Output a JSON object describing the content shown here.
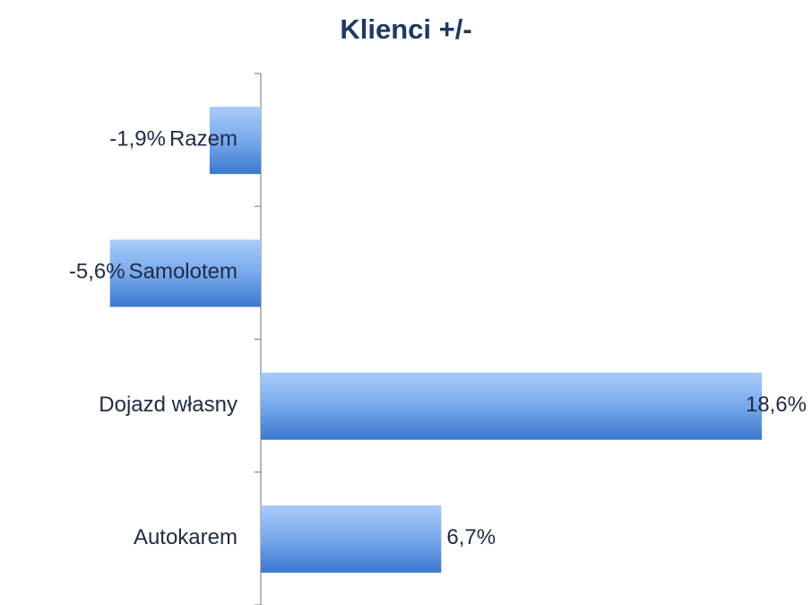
{
  "chart_data": {
    "type": "bar",
    "orientation": "horizontal",
    "title": "Klienci +/-",
    "categories": [
      "Razem",
      "Samolotem",
      "Dojazd własny",
      "Autokarem"
    ],
    "values": [
      -1.9,
      -5.6,
      18.6,
      6.7
    ],
    "value_labels": [
      "-1,9%",
      "-5,6%",
      "18,6%",
      "6,7%"
    ]
  }
}
